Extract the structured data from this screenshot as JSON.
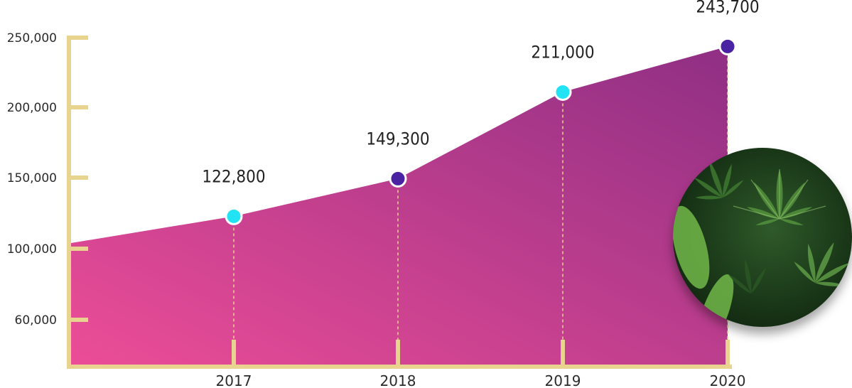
{
  "colors": {
    "axis": "#e8d38f",
    "area_start": "#ec4d97",
    "area_end": "#8f2f84",
    "marker_cyan": "#22e3f4",
    "marker_purple": "#4a23a3",
    "photo_icon": "cannabis-leaf-photo"
  },
  "chart_data": {
    "type": "area",
    "x": [
      "",
      "2017",
      "2018",
      "2019",
      "2020"
    ],
    "values": [
      104000,
      122800,
      149300,
      211000,
      243700
    ],
    "data_labels": [
      "",
      "122,800",
      "149,300",
      "211,000",
      "243,700"
    ],
    "marker_colors": [
      "",
      "cyan",
      "purple",
      "cyan",
      "purple"
    ],
    "y_ticks": [
      250000,
      200000,
      150000,
      100000,
      60000
    ],
    "y_tick_labels": [
      "250,000",
      "200,000",
      "150,000",
      "100,000",
      "60,000"
    ],
    "x_tick_labels": [
      "2017",
      "2018",
      "2019",
      "2020"
    ],
    "ylim": [
      60000,
      250000
    ],
    "title": "",
    "xlabel": "",
    "ylabel": "",
    "grid": false,
    "legend": "none"
  }
}
